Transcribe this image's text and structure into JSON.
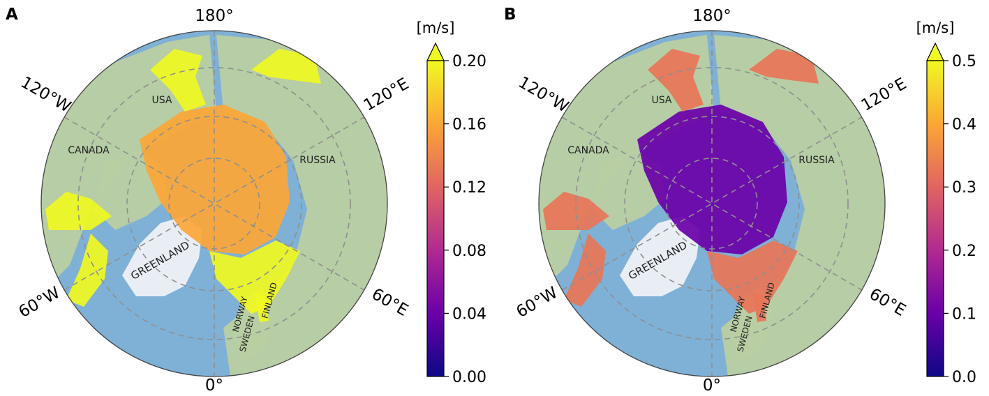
{
  "panels": [
    {
      "letter": "A",
      "colorbar_unit": "[m/s]",
      "colorbar_ticks": [
        "0.00",
        "0.04",
        "0.08",
        "0.12",
        "0.16",
        "0.20"
      ],
      "colorbar_range": [
        0.0,
        0.2
      ],
      "colorbar_extend": "max",
      "colormap": "plasma",
      "ice_field_level": 0.8,
      "longitude_labels": {
        "top": "180°",
        "bottom": "0°",
        "upper_left": "120°W",
        "upper_right": "120°E",
        "lower_left": "60°W",
        "lower_right": "60°E"
      },
      "place_labels": {
        "usa": "USA",
        "canada": "CANADA",
        "russia": "RUSSIA",
        "greenland": "GREENLAND",
        "norway": "NORWAY",
        "sweden": "SWEDEN",
        "finland": "FINLAND"
      }
    },
    {
      "letter": "B",
      "colorbar_unit": "[m/s]",
      "colorbar_ticks": [
        "0.0",
        "0.1",
        "0.2",
        "0.3",
        "0.4",
        "0.5"
      ],
      "colorbar_range": [
        0.0,
        0.5
      ],
      "colorbar_extend": "max",
      "colormap": "plasma",
      "ice_field_level": 0.2,
      "longitude_labels": {
        "top": "180°",
        "bottom": "0°",
        "upper_left": "120°W",
        "upper_right": "120°E",
        "lower_left": "60°W",
        "lower_right": "60°E"
      },
      "place_labels": {
        "usa": "USA",
        "canada": "CANADA",
        "russia": "RUSSIA",
        "greenland": "GREENLAND",
        "norway": "NORWAY",
        "sweden": "SWEDEN",
        "finland": "FINLAND"
      }
    }
  ],
  "colors": {
    "ocean": "#7fb0d6",
    "land": "#b9cfa2",
    "ice_cap": "#e9eef5",
    "grid": "#8f8f8f",
    "plasma": [
      "#0d0887",
      "#6a00a8",
      "#b12a90",
      "#e16462",
      "#fca636",
      "#f0f921"
    ]
  }
}
